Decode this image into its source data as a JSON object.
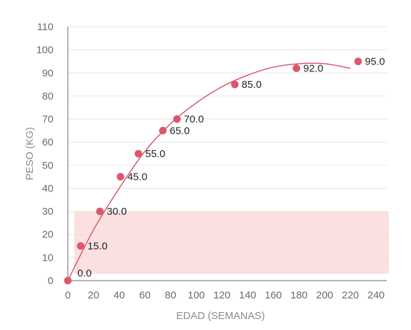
{
  "chart_data": {
    "type": "scatter",
    "xlabel": "EDAD (SEMANAS)",
    "ylabel": "PESO (KG)",
    "xlim": [
      0,
      240
    ],
    "ylim": [
      0,
      110
    ],
    "x_ticks": [
      "0",
      "20",
      "40",
      "60",
      "80",
      "100",
      "120",
      "140",
      "160",
      "180",
      "200",
      "220",
      "240"
    ],
    "y_ticks": [
      "0",
      "10",
      "20",
      "30",
      "40",
      "50",
      "60",
      "70",
      "80",
      "90",
      "100",
      "110"
    ],
    "grid": "horizontal",
    "series": [
      {
        "points": [
          {
            "x": 0,
            "y": 0,
            "label": "0.0"
          },
          {
            "x": 10,
            "y": 15,
            "label": "15.0"
          },
          {
            "x": 25,
            "y": 30,
            "label": "30.0"
          },
          {
            "x": 41,
            "y": 45,
            "label": "45.0"
          },
          {
            "x": 55,
            "y": 55,
            "label": "55.0"
          },
          {
            "x": 74,
            "y": 65,
            "label": "65.0"
          },
          {
            "x": 85,
            "y": 70,
            "label": "70.0"
          },
          {
            "x": 130,
            "y": 85,
            "label": "85.0"
          },
          {
            "x": 178,
            "y": 92,
            "label": "92.0"
          },
          {
            "x": 226,
            "y": 95,
            "label": "95.0"
          }
        ]
      }
    ],
    "trendline": {
      "type": "polynomial",
      "points": [
        [
          0,
          0
        ],
        [
          20,
          22
        ],
        [
          40,
          40
        ],
        [
          60,
          56
        ],
        [
          80,
          68
        ],
        [
          100,
          77
        ],
        [
          120,
          84
        ],
        [
          140,
          89
        ],
        [
          160,
          92.5
        ],
        [
          180,
          94
        ],
        [
          200,
          94
        ],
        [
          220,
          92
        ]
      ]
    },
    "shaded_band": {
      "x": [
        5,
        250
      ],
      "y": [
        3,
        30
      ]
    },
    "colors": {
      "marker": "#d9586d",
      "trendline": "#d9586d",
      "band": "#f9dada",
      "grid": "#e6e6e6",
      "axis": "#9a9a9a"
    }
  }
}
